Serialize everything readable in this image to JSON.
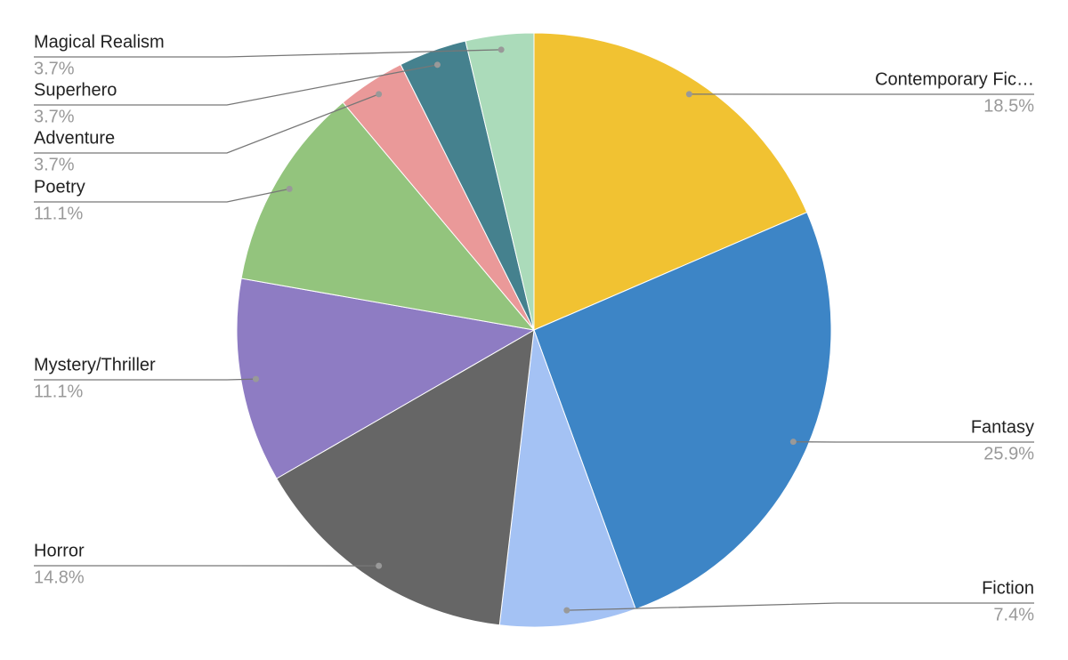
{
  "chart_data": {
    "type": "pie",
    "categories": [
      "Contemporary Fic…",
      "Fantasy",
      "Fiction",
      "Horror",
      "Mystery/Thriller",
      "Poetry",
      "Adventure",
      "Superhero",
      "Magical Realism"
    ],
    "values": [
      18.5,
      25.9,
      7.4,
      14.8,
      11.1,
      11.1,
      3.7,
      3.7,
      3.7
    ],
    "value_labels": [
      "18.5%",
      "25.9%",
      "7.4%",
      "14.8%",
      "11.1%",
      "11.1%",
      "3.7%",
      "3.7%",
      "3.7%"
    ],
    "colors": [
      "#f1c232",
      "#3d85c6",
      "#a4c2f4",
      "#666666",
      "#8e7cc3",
      "#93c47d",
      "#ea9999",
      "#45818e",
      "#abdbba"
    ]
  }
}
